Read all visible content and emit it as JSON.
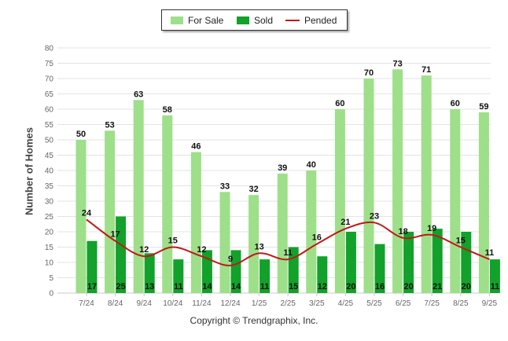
{
  "legend": {
    "for_sale_label": "For Sale",
    "sold_label": "Sold",
    "pended_label": "Pended"
  },
  "footer": {
    "copyright": "Copyright © Trendgraphix, Inc."
  },
  "colors": {
    "for_sale": "#9edf8a",
    "sold": "#12a12a",
    "pended": "#c01818",
    "grid": "#e3e3e3",
    "axis_text": "#666666"
  },
  "chart_data": {
    "type": "bar",
    "title": "",
    "xlabel": "",
    "ylabel": "Number of Homes",
    "ylim": [
      0,
      80
    ],
    "yticks": [
      0,
      5,
      10,
      15,
      20,
      25,
      30,
      35,
      40,
      45,
      50,
      55,
      60,
      65,
      70,
      75,
      80
    ],
    "grid": true,
    "legend_position": "top-center",
    "categories": [
      "7/24",
      "8/24",
      "9/24",
      "10/24",
      "11/24",
      "12/24",
      "1/25",
      "2/25",
      "3/25",
      "4/25",
      "5/25",
      "6/25",
      "7/25",
      "8/25",
      "9/25"
    ],
    "series": [
      {
        "name": "For Sale",
        "type": "bar",
        "values": [
          50,
          53,
          63,
          58,
          46,
          33,
          32,
          39,
          40,
          60,
          70,
          73,
          71,
          60,
          59
        ]
      },
      {
        "name": "Sold",
        "type": "bar",
        "values": [
          17,
          25,
          13,
          11,
          14,
          14,
          11,
          15,
          12,
          20,
          16,
          20,
          21,
          20,
          11
        ]
      },
      {
        "name": "Pended",
        "type": "line",
        "values": [
          24,
          17,
          12,
          15,
          12,
          9,
          13,
          11,
          16,
          21,
          23,
          18,
          19,
          15,
          11
        ]
      }
    ]
  }
}
